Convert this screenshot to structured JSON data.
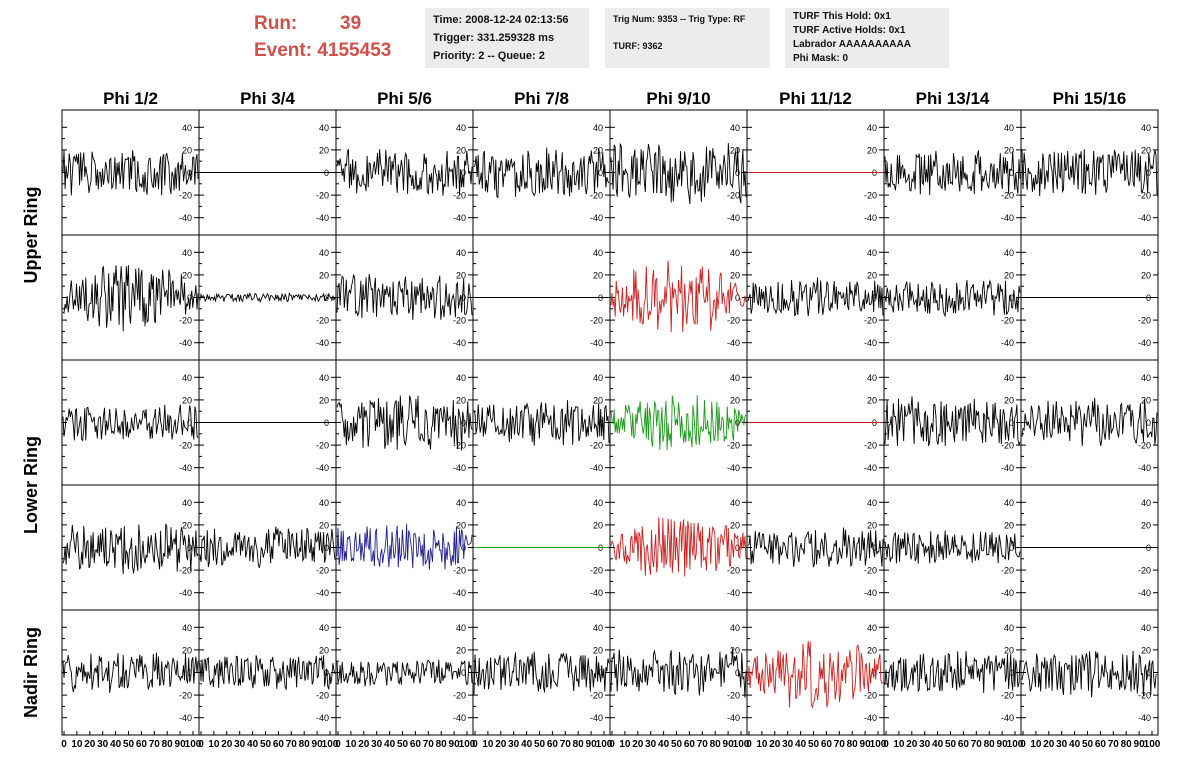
{
  "run": {
    "run_label": "Run:",
    "run_value": "39",
    "event_label": "Event:",
    "event_value": "4155453"
  },
  "info_box_1": {
    "time": "Time: 2008-12-24 02:13:56",
    "trigger": "Trigger: 331.259328 ms",
    "priority": "Priority: 2 -- Queue: 2"
  },
  "info_box_2": {
    "trig": "Trig Num: 9353 -- Trig Type: RF",
    "turf": "TURF: 9362"
  },
  "info_box_3": {
    "hold": "TURF This Hold: 0x1",
    "active": "TURF Active Holds: 0x1",
    "labrador": "Labrador AAAAAAAAAA",
    "phimask": "Phi Mask: 0"
  },
  "colors": {
    "black": "#000000",
    "red": "#cc2020",
    "green": "#1a9a1a",
    "blue": "#202090",
    "header_red": "#d0504c"
  },
  "chart_data": {
    "type": "line",
    "columns": [
      "Phi 1/2",
      "Phi 3/4",
      "Phi 5/6",
      "Phi 7/8",
      "Phi 9/10",
      "Phi 11/12",
      "Phi 13/14",
      "Phi 15/16"
    ],
    "row_groups": [
      {
        "label": "Upper Ring",
        "rows": [
          0,
          1
        ]
      },
      {
        "label": "Lower Ring",
        "rows": [
          2,
          3
        ]
      },
      {
        "label": "Nadir Ring",
        "rows": [
          4
        ]
      }
    ],
    "ylim": [
      -50,
      50
    ],
    "y_ticks": [
      -40,
      -20,
      0,
      20,
      40
    ],
    "xlim": [
      0,
      100
    ],
    "x_tick_labels": [
      "0",
      "10",
      "20",
      "30",
      "40",
      "50",
      "60",
      "70",
      "80",
      "90",
      "100"
    ],
    "panels": [
      [
        {
          "color": "black",
          "amp": 16,
          "env": "flat",
          "seed": 1
        },
        {
          "color": "black",
          "amp": 0,
          "env": "flat",
          "seed": 2
        },
        {
          "color": "black",
          "amp": 17,
          "env": "flat",
          "seed": 3
        },
        {
          "color": "black",
          "amp": 18,
          "env": "flat",
          "seed": 4
        },
        {
          "color": "black",
          "amp": 22,
          "env": "flat",
          "seed": 5
        },
        {
          "color": "red",
          "amp": 0,
          "env": "flat",
          "seed": 6
        },
        {
          "color": "black",
          "amp": 16,
          "env": "flat",
          "seed": 7
        },
        {
          "color": "black",
          "amp": 17,
          "env": "flat",
          "seed": 8
        }
      ],
      [
        {
          "color": "black",
          "amp": 26,
          "env": "pulse",
          "seed": 9
        },
        {
          "color": "black",
          "amp": 3,
          "env": "flat",
          "seed": 10
        },
        {
          "color": "black",
          "amp": 16,
          "env": "flat",
          "seed": 11
        },
        {
          "color": "black",
          "amp": 0,
          "env": "flat",
          "seed": 12
        },
        {
          "color": "red",
          "amp": 28,
          "env": "pulse",
          "seed": 13
        },
        {
          "color": "black",
          "amp": 14,
          "env": "flat",
          "seed": 14
        },
        {
          "color": "black",
          "amp": 13,
          "env": "flat",
          "seed": 15
        },
        {
          "color": "black",
          "amp": 0,
          "env": "flat",
          "seed": 16
        }
      ],
      [
        {
          "color": "black",
          "amp": 14,
          "env": "flat",
          "seed": 17
        },
        {
          "color": "black",
          "amp": 0,
          "env": "flat",
          "seed": 18
        },
        {
          "color": "black",
          "amp": 20,
          "env": "flat",
          "seed": 19
        },
        {
          "color": "black",
          "amp": 16,
          "env": "flat",
          "seed": 20
        },
        {
          "color": "green",
          "amp": 22,
          "env": "pulse",
          "seed": 21
        },
        {
          "color": "red",
          "amp": 0,
          "env": "flat",
          "seed": 22
        },
        {
          "color": "black",
          "amp": 18,
          "env": "flat",
          "seed": 23
        },
        {
          "color": "black",
          "amp": 17,
          "env": "flat",
          "seed": 24
        }
      ],
      [
        {
          "color": "black",
          "amp": 18,
          "env": "flat",
          "seed": 25
        },
        {
          "color": "black",
          "amp": 14,
          "env": "flat",
          "seed": 26
        },
        {
          "color": "blue",
          "amp": 16,
          "env": "flat",
          "seed": 27
        },
        {
          "color": "green",
          "amp": 0,
          "env": "flat",
          "seed": 28
        },
        {
          "color": "red",
          "amp": 24,
          "env": "pulse",
          "seed": 29
        },
        {
          "color": "black",
          "amp": 14,
          "env": "flat",
          "seed": 30
        },
        {
          "color": "black",
          "amp": 12,
          "env": "flat",
          "seed": 31
        },
        {
          "color": "black",
          "amp": 0,
          "env": "flat",
          "seed": 32
        }
      ],
      [
        {
          "color": "black",
          "amp": 14,
          "env": "flat",
          "seed": 33
        },
        {
          "color": "black",
          "amp": 12,
          "env": "flat",
          "seed": 34
        },
        {
          "color": "black",
          "amp": 10,
          "env": "flat",
          "seed": 35
        },
        {
          "color": "black",
          "amp": 15,
          "env": "flat",
          "seed": 36
        },
        {
          "color": "black",
          "amp": 17,
          "env": "flat",
          "seed": 37
        },
        {
          "color": "red",
          "amp": 26,
          "env": "pulse",
          "seed": 38
        },
        {
          "color": "black",
          "amp": 15,
          "env": "flat",
          "seed": 39
        },
        {
          "color": "black",
          "amp": 17,
          "env": "flat",
          "seed": 40
        }
      ]
    ]
  }
}
